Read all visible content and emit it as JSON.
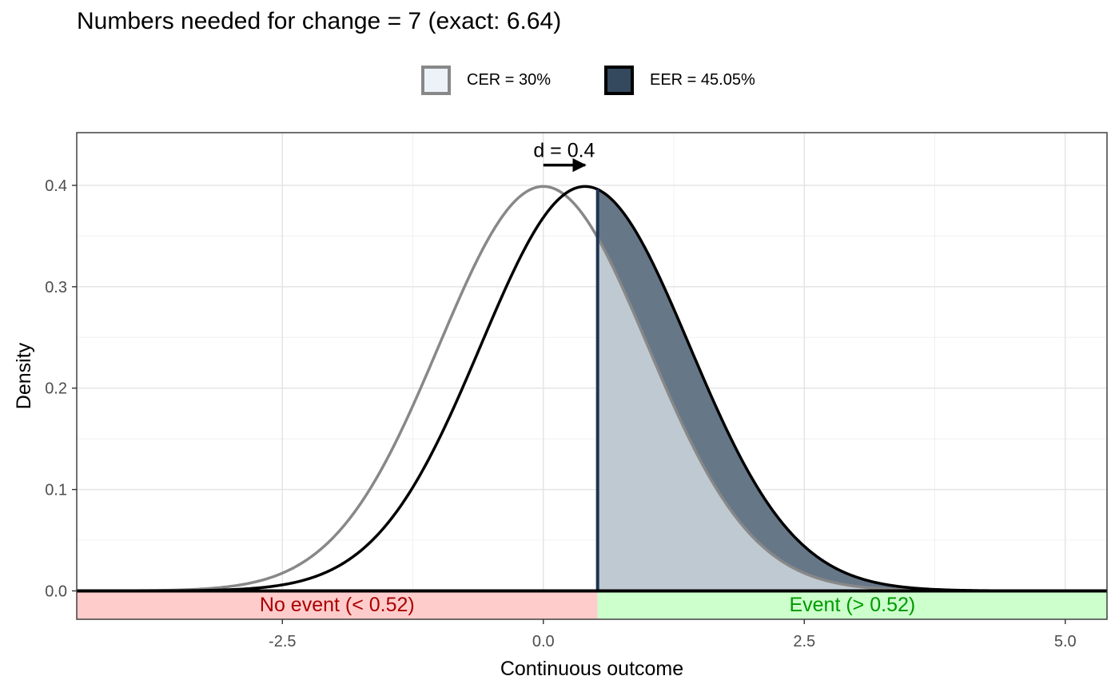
{
  "chart_data": {
    "type": "area",
    "title": "Numbers needed for change = 7 (exact: 6.64)",
    "xlabel": "Continuous outcome",
    "ylabel": "Density",
    "xlim": [
      -4.47,
      5.4
    ],
    "ylim": [
      -0.028,
      0.452
    ],
    "x_ticks": [
      -2.5,
      0.0,
      2.5,
      5.0
    ],
    "x_tick_labels": [
      "-2.5",
      "0.0",
      "2.5",
      "5.0"
    ],
    "y_ticks": [
      0.0,
      0.1,
      0.2,
      0.3,
      0.4
    ],
    "y_tick_labels": [
      "0.0",
      "0.1",
      "0.2",
      "0.3",
      "0.4"
    ],
    "grid": true,
    "legend_position": "top",
    "series": [
      {
        "name": "CER = 30%",
        "distribution": "normal",
        "mean": 0.0,
        "sd": 1.0,
        "line_color": "#888888",
        "fill_color": "#bfc9d2",
        "fill_above": 0.52
      },
      {
        "name": "EER = 45.05%",
        "distribution": "normal",
        "mean": 0.4,
        "sd": 1.0,
        "line_color": "#000000",
        "fill_color": "#667788",
        "fill_above": 0.52
      }
    ],
    "threshold": 0.52,
    "annotations": {
      "effect_label": "d = 0.4",
      "arrow_from": 0.0,
      "arrow_to": 0.4,
      "arrow_y": 0.42,
      "below_label": "No event (< 0.52)",
      "above_label": "Event (> 0.52)"
    },
    "colors": {
      "below_band": "#ffcccc",
      "above_band": "#ccffcc",
      "below_text": "#aa0000",
      "above_text": "#009900",
      "threshold_line": "#1e3550",
      "legend_cer_fill": "#edf2f8",
      "legend_cer_border": "#888888",
      "legend_eer_fill": "#34495e",
      "legend_eer_border": "#000000"
    }
  }
}
